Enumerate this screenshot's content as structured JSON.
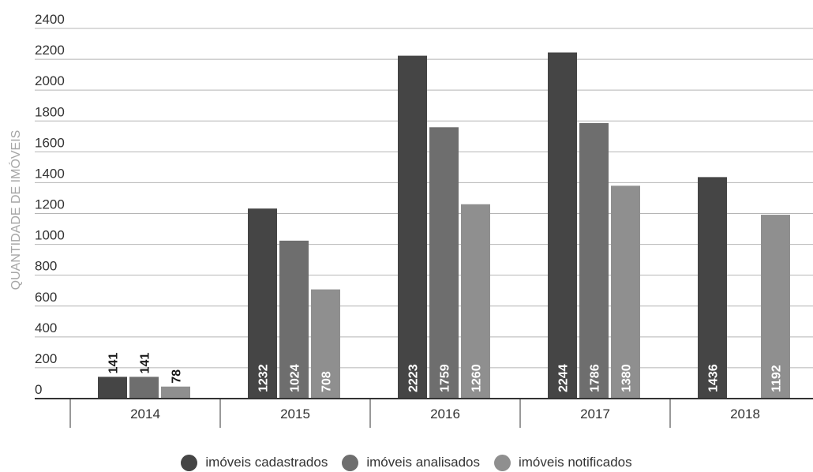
{
  "chart_data": {
    "type": "bar",
    "ylabel": "QUANTIDADE DE IMÓVEIS",
    "xlabel": "",
    "ylim": [
      0,
      2400
    ],
    "yticks": [
      0,
      200,
      400,
      600,
      800,
      1000,
      1200,
      1400,
      1600,
      1800,
      2000,
      2200,
      2400
    ],
    "grid": true,
    "legend_position": "bottom",
    "categories": [
      "2014",
      "2015",
      "2016",
      "2017",
      "2018"
    ],
    "series": [
      {
        "name": "imóveis cadastrados",
        "color": "#454545",
        "values": [
          141,
          1232,
          2223,
          2244,
          1436
        ]
      },
      {
        "name": "imóveis analisados",
        "color": "#6e6e6e",
        "values": [
          141,
          1024,
          1759,
          1786,
          null
        ]
      },
      {
        "name": "imóveis notificados",
        "color": "#8f8f8f",
        "values": [
          78,
          708,
          1260,
          1380,
          1192
        ]
      }
    ]
  }
}
